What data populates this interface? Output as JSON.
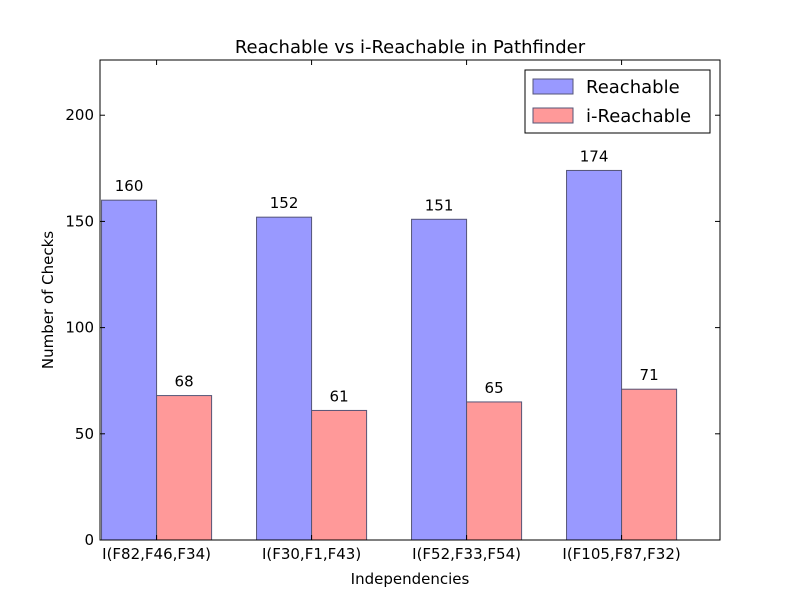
{
  "chart_data": {
    "type": "bar",
    "title": "Reachable vs i-Reachable in Pathfinder",
    "xlabel": "Independencies",
    "ylabel": "Number of Checks",
    "categories": [
      "I(F82,F46,F34)",
      "I(F30,F1,F43)",
      "I(F52,F33,F54)",
      "I(F105,F87,F32)"
    ],
    "series": [
      {
        "name": "Reachable",
        "values": [
          160,
          152,
          151,
          174
        ],
        "color": "#9999ff"
      },
      {
        "name": "i-Reachable",
        "values": [
          68,
          61,
          65,
          71
        ],
        "color": "#ff9999"
      }
    ],
    "ylim": [
      0,
      226
    ],
    "yticks": [
      0,
      50,
      100,
      150,
      200
    ],
    "grid": false,
    "legend_position": "top-right"
  }
}
